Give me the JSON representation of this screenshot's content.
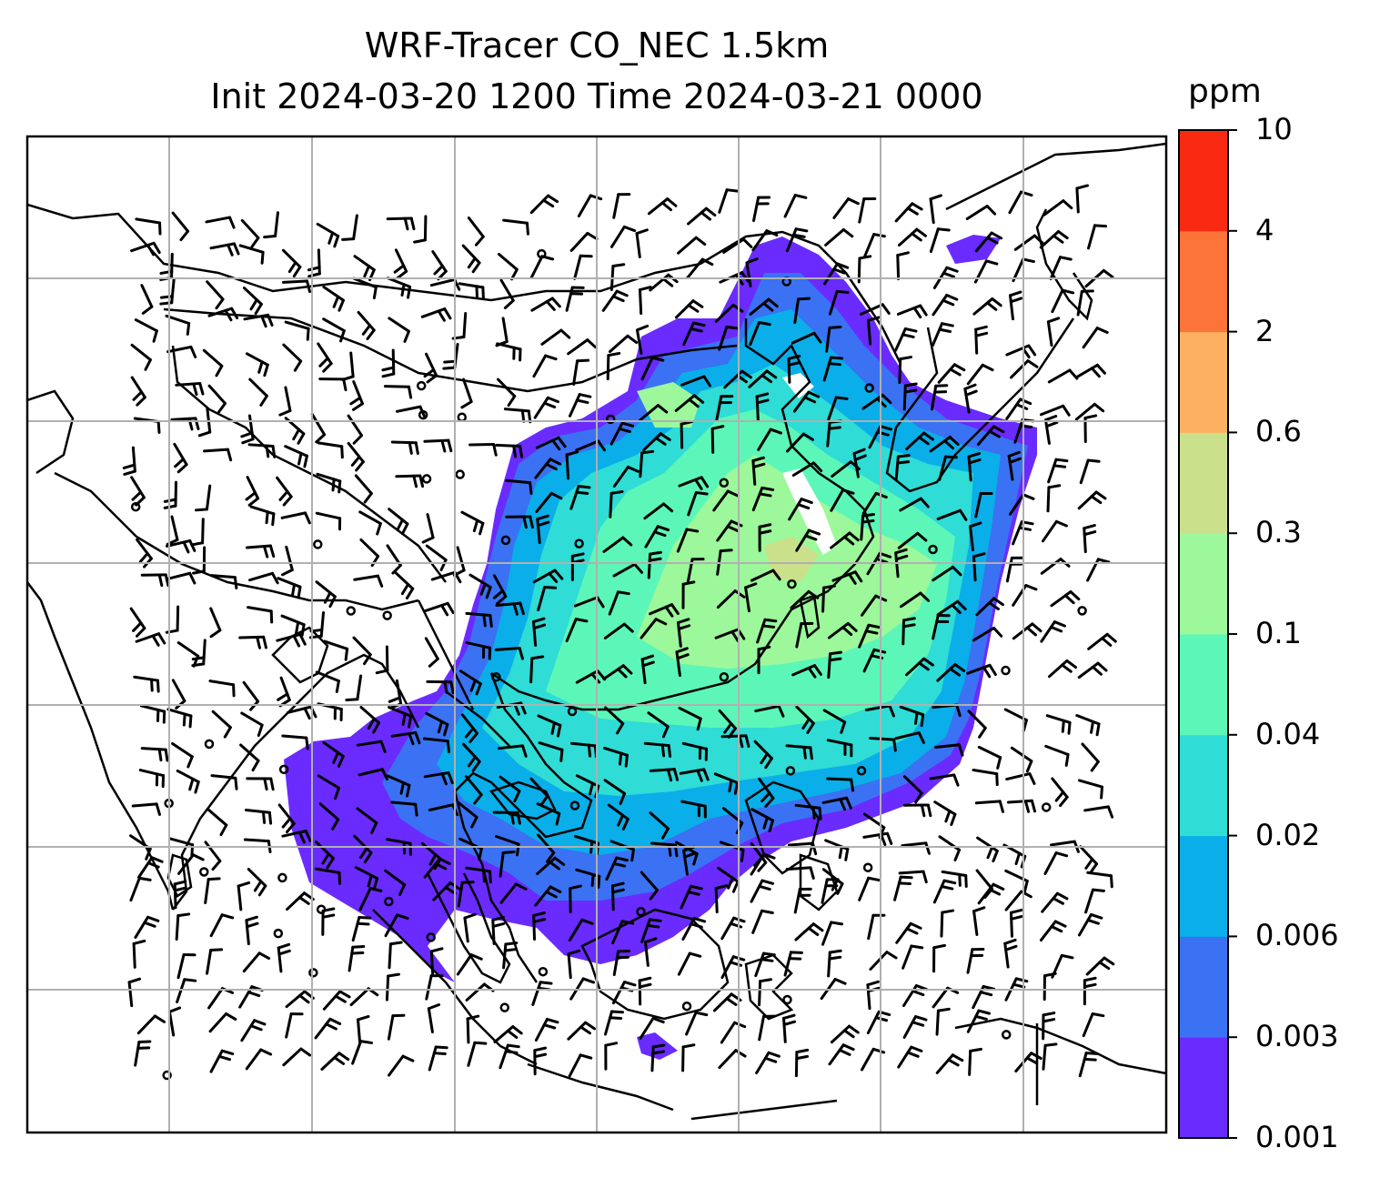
{
  "title": {
    "line1": "WRF-Tracer CO_NEC 1.5km",
    "line2": "Init 2024-03-20 1200 Time 2024-03-21 0000"
  },
  "colorbar": {
    "unit": "ppm",
    "levels": [
      "0.001",
      "0.003",
      "0.006",
      "0.02",
      "0.04",
      "0.1",
      "0.3",
      "0.6",
      "2",
      "4",
      "10"
    ],
    "colors": [
      "#6a2bff",
      "#3a72f3",
      "#0aaee8",
      "#2fdcd6",
      "#5cf7b8",
      "#9cf89a",
      "#cbe08a",
      "#fcb060",
      "#fc7438",
      "#fa2a12"
    ]
  },
  "map": {
    "gridlines": true,
    "coastline_color": "#000000",
    "grid_color": "#b0b0b0"
  }
}
